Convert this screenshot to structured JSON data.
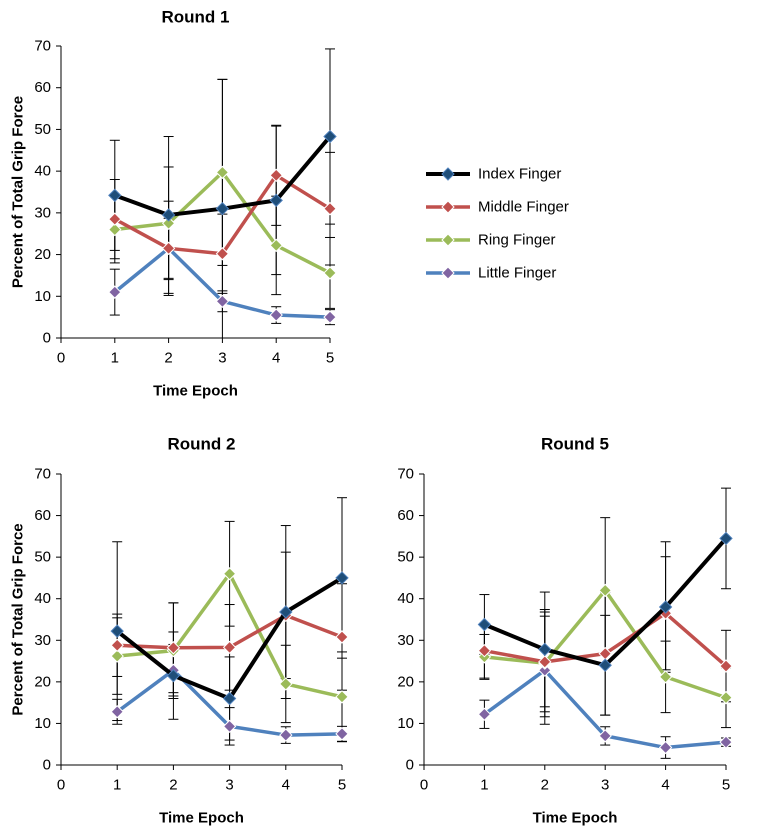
{
  "series_styles": [
    {
      "name": "Index Finger",
      "color": "#000000",
      "marker_fill": "#1f4e79",
      "width": 4
    },
    {
      "name": "Middle Finger",
      "color": "#c0504d",
      "marker_fill": "#c0504d",
      "width": 3.5
    },
    {
      "name": "Ring Finger",
      "color": "#9bbb59",
      "marker_fill": "#9bbb59",
      "width": 3.5
    },
    {
      "name": "Little Finger",
      "color": "#4f81bd",
      "marker_fill": "#8064a2",
      "width": 3.5
    }
  ],
  "chart_data": [
    {
      "type": "line",
      "title": "Round 1",
      "xlabel": "Time Epoch",
      "ylabel": "Percent of Total Grip Force",
      "xlim": [
        0,
        5
      ],
      "ylim": [
        0,
        70
      ],
      "x_ticks": [
        0,
        1,
        2,
        3,
        4,
        5
      ],
      "y_ticks": [
        0,
        10,
        20,
        30,
        40,
        50,
        60,
        70
      ],
      "legend": "right",
      "x": [
        1,
        2,
        3,
        4,
        5
      ],
      "series": [
        {
          "name": "Index Finger",
          "values": [
            34.2,
            29.5,
            31.0,
            33.0,
            48.3
          ],
          "error": [
            13.2,
            18.8,
            31.0,
            17.8,
            21.0
          ]
        },
        {
          "name": "Middle Finger",
          "values": [
            28.5,
            21.5,
            20.2,
            39.0,
            31.0
          ],
          "error": [
            9.5,
            11.3,
            9.5,
            12.0,
            13.5
          ]
        },
        {
          "name": "Ring Finger",
          "values": [
            26.0,
            27.5,
            39.7,
            22.2,
            15.6
          ],
          "error": [
            8.0,
            13.5,
            22.3,
            11.8,
            8.5
          ]
        },
        {
          "name": "Little Finger",
          "values": [
            11.0,
            21.5,
            8.8,
            5.5,
            5.0
          ],
          "error": [
            5.5,
            7.2,
            2.5,
            2.0,
            1.8
          ]
        }
      ]
    },
    {
      "type": "line",
      "title": "Round 2",
      "xlabel": "Time Epoch",
      "ylabel": "Percent of Total Grip Force",
      "xlim": [
        0,
        5
      ],
      "ylim": [
        0,
        70
      ],
      "x_ticks": [
        0,
        1,
        2,
        3,
        4,
        5
      ],
      "y_ticks": [
        0,
        10,
        20,
        30,
        40,
        50,
        60,
        70
      ],
      "x": [
        1,
        2,
        3,
        4,
        5
      ],
      "series": [
        {
          "name": "Index Finger",
          "values": [
            32.2,
            21.5,
            16.0,
            36.8,
            45.0
          ],
          "error": [
            21.5,
            10.5,
            10.0,
            20.8,
            19.3
          ]
        },
        {
          "name": "Middle Finger",
          "values": [
            28.8,
            28.2,
            28.3,
            36.0,
            30.8
          ],
          "error": [
            7.5,
            10.8,
            10.3,
            15.2,
            12.8
          ]
        },
        {
          "name": "Ring Finger",
          "values": [
            26.2,
            27.5,
            46.0,
            19.5,
            16.4
          ],
          "error": [
            9.2,
            11.5,
            12.6,
            9.3,
            10.8
          ]
        },
        {
          "name": "Little Finger",
          "values": [
            12.8,
            22.8,
            9.3,
            7.2,
            7.5
          ],
          "error": [
            3.0,
            6.2,
            4.5,
            2.0,
            1.8
          ]
        }
      ]
    },
    {
      "type": "line",
      "title": "Round 5",
      "xlabel": "Time Epoch",
      "ylabel": "",
      "xlim": [
        0,
        5
      ],
      "ylim": [
        0,
        70
      ],
      "x_ticks": [
        0,
        1,
        2,
        3,
        4,
        5
      ],
      "y_ticks": [
        0,
        10,
        20,
        30,
        40,
        50,
        60,
        70
      ],
      "x": [
        1,
        2,
        3,
        4,
        5
      ],
      "series": [
        {
          "name": "Index Finger",
          "values": [
            33.8,
            27.8,
            24.0,
            38.0,
            54.5
          ],
          "error": [
            7.2,
            13.8,
            12.0,
            15.7,
            12.1
          ]
        },
        {
          "name": "Middle Finger",
          "values": [
            27.5,
            24.8,
            26.8,
            36.5,
            23.8
          ],
          "error": [
            6.6,
            12.0,
            14.8,
            13.6,
            8.6
          ]
        },
        {
          "name": "Ring Finger",
          "values": [
            26.0,
            24.5,
            42.0,
            21.2,
            16.2
          ],
          "error": [
            5.4,
            12.9,
            17.5,
            8.6,
            7.2
          ]
        },
        {
          "name": "Little Finger",
          "values": [
            12.2,
            22.8,
            7.0,
            4.2,
            5.5
          ],
          "error": [
            3.4,
            13.0,
            2.2,
            2.6,
            1.0
          ]
        }
      ]
    }
  ]
}
